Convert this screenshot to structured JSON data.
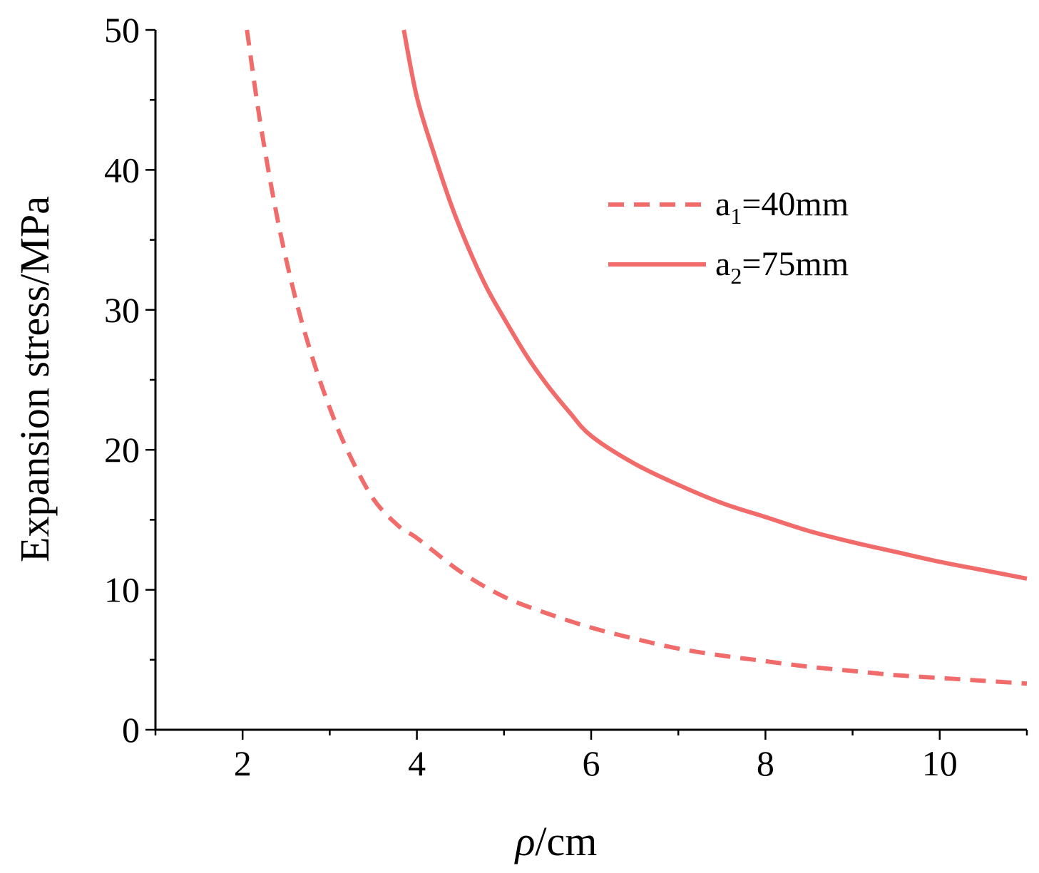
{
  "chart_data": {
    "type": "line",
    "title": "",
    "xlabel": {
      "symbol": "ρ",
      "unit": "/cm"
    },
    "ylabel": "Expansion stress/MPa",
    "xlim": [
      1,
      11
    ],
    "ylim": [
      0,
      50
    ],
    "xticks": [
      "2",
      "4",
      "6",
      "8",
      "10"
    ],
    "yticks": [
      "0",
      "10",
      "20",
      "30",
      "40",
      "50"
    ],
    "grid": false,
    "legend_position": "top-right",
    "line_color": "#f26b6b",
    "series": [
      {
        "name": "a1=40mm",
        "legend": {
          "base": "a",
          "sub": "1",
          "rest": "=40mm"
        },
        "style": "dashed",
        "x": [
          2.05,
          2.2,
          2.4,
          2.6,
          2.8,
          3.0,
          3.2,
          3.5,
          3.8,
          4.0,
          4.5,
          5.0,
          5.5,
          6.0,
          6.5,
          7.0,
          7.5,
          8.0,
          8.5,
          9.0,
          9.5,
          10.0,
          10.5,
          11.0
        ],
        "y": [
          50.0,
          43.5,
          36.5,
          31.0,
          26.6,
          23.0,
          20.0,
          16.5,
          14.5,
          13.7,
          11.3,
          9.5,
          8.3,
          7.3,
          6.5,
          5.8,
          5.3,
          4.9,
          4.5,
          4.2,
          3.9,
          3.7,
          3.5,
          3.3
        ]
      },
      {
        "name": "a2=75mm",
        "legend": {
          "base": "a",
          "sub": "2",
          "rest": "=75mm"
        },
        "style": "solid",
        "x": [
          3.85,
          4.0,
          4.2,
          4.4,
          4.6,
          4.8,
          5.0,
          5.25,
          5.5,
          5.75,
          6.0,
          6.5,
          7.0,
          7.5,
          8.0,
          8.5,
          9.0,
          9.5,
          10.0,
          10.5,
          11.0
        ],
        "y": [
          50.0,
          45.2,
          41.1,
          37.4,
          34.3,
          31.6,
          29.4,
          26.8,
          24.6,
          22.7,
          21.0,
          19.0,
          17.5,
          16.2,
          15.2,
          14.2,
          13.4,
          12.7,
          12.0,
          11.4,
          10.8
        ]
      }
    ]
  }
}
